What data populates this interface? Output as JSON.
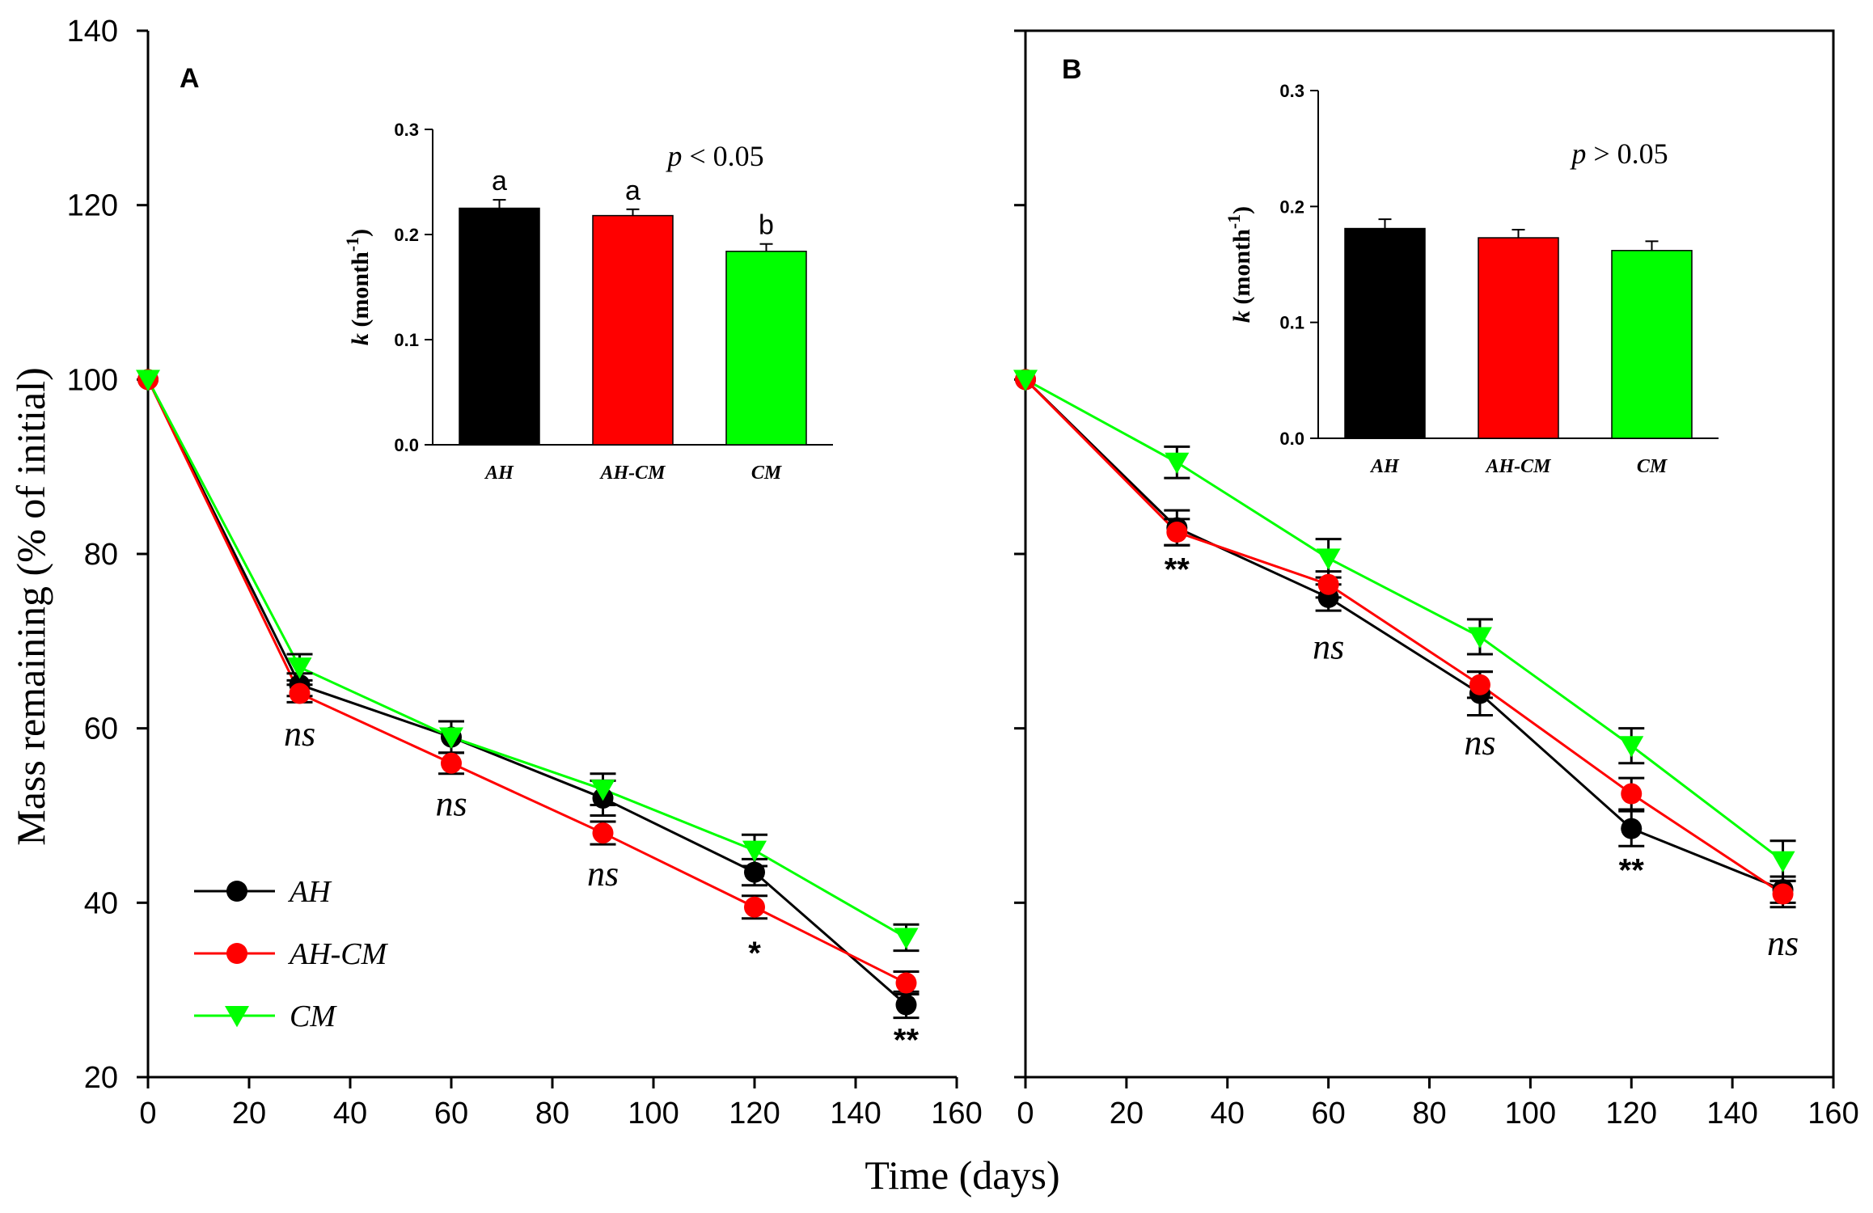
{
  "figure": {
    "ylabel": "Mass remaining (% of initial)",
    "xlabel": "Time (days)"
  },
  "chart_data": [
    {
      "panel": "A",
      "type": "line",
      "title": "A",
      "x": [
        0,
        30,
        60,
        90,
        120,
        150
      ],
      "xlim": [
        0,
        160
      ],
      "ylim": [
        20,
        140
      ],
      "xticks": [
        "0",
        "20",
        "40",
        "60",
        "80",
        "100",
        "120",
        "140",
        "160"
      ],
      "yticks": [
        "20",
        "40",
        "60",
        "80",
        "100",
        "120",
        "140"
      ],
      "series": [
        {
          "name": "AH",
          "color": "#000000",
          "marker": "circle",
          "values": [
            100,
            65,
            59,
            52,
            43.5,
            28.3
          ],
          "errors": [
            0,
            1.3,
            1.8,
            2.0,
            1.5,
            1.5
          ]
        },
        {
          "name": "AH-CM",
          "color": "#ff0000",
          "marker": "circle",
          "values": [
            100,
            64,
            56,
            48,
            39.5,
            30.8
          ],
          "errors": [
            0,
            1.0,
            1.2,
            1.3,
            1.3,
            1.3
          ]
        },
        {
          "name": "CM",
          "color": "#00ff00",
          "marker": "triangle-down",
          "values": [
            100,
            67,
            59,
            53,
            46,
            36
          ],
          "errors": [
            0,
            1.5,
            1.8,
            1.8,
            1.8,
            1.5
          ]
        }
      ],
      "annotations": [
        {
          "text": "ns",
          "x": 30,
          "y": 58,
          "italic": true
        },
        {
          "text": "ns",
          "x": 60,
          "y": 50,
          "italic": true
        },
        {
          "text": "ns",
          "x": 90,
          "y": 42,
          "italic": true
        },
        {
          "text": "*",
          "x": 120,
          "y": 33,
          "italic": false
        },
        {
          "text": "**",
          "x": 150,
          "y": 23,
          "italic": false
        }
      ],
      "legend": {
        "position": "bottom-left",
        "entries": [
          "AH",
          "AH-CM",
          "CM"
        ]
      },
      "inset": {
        "type": "bar",
        "categories": [
          "AH",
          "AH-CM",
          "CM"
        ],
        "values": [
          0.225,
          0.218,
          0.184
        ],
        "errors": [
          0.008,
          0.006,
          0.007
        ],
        "colors": [
          "#000000",
          "#ff0000",
          "#00ff00"
        ],
        "letters": [
          "a",
          "a",
          "b"
        ],
        "ylim": [
          0,
          0.3
        ],
        "yticks": [
          "0.0",
          "0.1",
          "0.2",
          "0.3"
        ],
        "ylabel_main": "k",
        "ylabel_unit": " (month",
        "ylabel_sup": "-1",
        "ylabel_close": ")",
        "pvalue": {
          "p": "p",
          "rest": " < 0.05"
        }
      }
    },
    {
      "panel": "B",
      "type": "line",
      "title": "B",
      "x": [
        0,
        30,
        60,
        90,
        120,
        150
      ],
      "xlim": [
        0,
        160
      ],
      "ylim": [
        20,
        140
      ],
      "xticks": [
        "0",
        "20",
        "40",
        "60",
        "80",
        "100",
        "120",
        "140",
        "160"
      ],
      "series": [
        {
          "name": "AH",
          "color": "#000000",
          "marker": "circle",
          "values": [
            100,
            83,
            75,
            64,
            48.5,
            41.5
          ],
          "errors": [
            0,
            2.0,
            1.5,
            2.5,
            2.0,
            1.5
          ]
        },
        {
          "name": "AH-CM",
          "color": "#ff0000",
          "marker": "circle",
          "values": [
            100,
            82.5,
            76.5,
            65,
            52.5,
            41
          ],
          "errors": [
            0,
            1.5,
            1.5,
            1.5,
            1.8,
            1.5
          ]
        },
        {
          "name": "CM",
          "color": "#00ff00",
          "marker": "triangle-down",
          "values": [
            100,
            90.5,
            79.5,
            70.5,
            58,
            44.8
          ],
          "errors": [
            0,
            1.8,
            2.2,
            2.0,
            2.0,
            2.3
          ]
        }
      ],
      "annotations": [
        {
          "text": "**",
          "x": 30,
          "y": 77,
          "italic": false
        },
        {
          "text": "ns",
          "x": 60,
          "y": 68,
          "italic": true
        },
        {
          "text": "ns",
          "x": 90,
          "y": 57,
          "italic": true
        },
        {
          "text": "**",
          "x": 120,
          "y": 42.5,
          "italic": false
        },
        {
          "text": "ns",
          "x": 150,
          "y": 34,
          "italic": true
        }
      ],
      "inset": {
        "type": "bar",
        "categories": [
          "AH",
          "AH-CM",
          "CM"
        ],
        "values": [
          0.181,
          0.173,
          0.162
        ],
        "errors": [
          0.008,
          0.007,
          0.008
        ],
        "colors": [
          "#000000",
          "#ff0000",
          "#00ff00"
        ],
        "letters": [
          "",
          "",
          ""
        ],
        "ylim": [
          0,
          0.3
        ],
        "yticks": [
          "0.0",
          "0.1",
          "0.2",
          "0.3"
        ],
        "ylabel_main": "k",
        "ylabel_unit": " (month",
        "ylabel_sup": "-1",
        "ylabel_close": ")",
        "pvalue": {
          "p": "p",
          "rest": " > 0.05"
        }
      }
    }
  ]
}
